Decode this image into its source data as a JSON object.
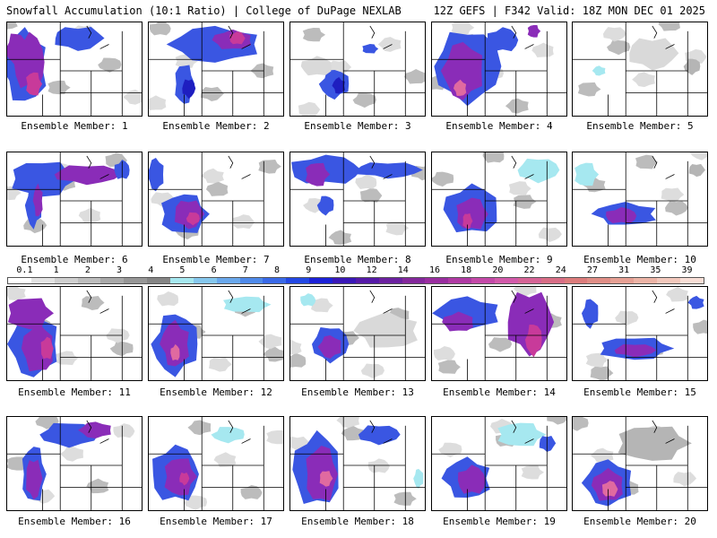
{
  "header": {
    "left_title": "Snowfall Accumulation (10:1 Ratio) | College of DuPage NEXLAB",
    "right_title": "12Z GEFS | F342 Valid: 18Z MON DEC 01 2025"
  },
  "legend": {
    "labels": [
      "0.1",
      "1",
      "2",
      "3",
      "4",
      "5",
      "6",
      "7",
      "8",
      "9",
      "10",
      "12",
      "14",
      "16",
      "18",
      "20",
      "22",
      "24",
      "27",
      "31",
      "35",
      "39"
    ],
    "colors": [
      "#ffffff",
      "#e3e3e3",
      "#cfcfcf",
      "#bdbdbd",
      "#a9a9a9",
      "#979797",
      "#858585",
      "#a6e8f0",
      "#86c8ee",
      "#6aa8ec",
      "#4f8aea",
      "#3a6ae8",
      "#2348e4",
      "#1c22d8",
      "#3a18b8",
      "#561aa8",
      "#6c22a0",
      "#84289c",
      "#9a2ea0",
      "#b03aa4",
      "#c449a8",
      "#d25aaa",
      "#d66496",
      "#d86e86",
      "#dc7c7c",
      "#e08e86",
      "#e6a094",
      "#ecb4a6",
      "#f2c8bc",
      "#f8ded6"
    ]
  },
  "map_regions": {
    "lavender": "#c2a0e6",
    "purple": "#8a2cb8",
    "blue": "#3a56e2",
    "darkblue": "#1e1ec0",
    "cyan": "#a6e8f0",
    "lightgray": "#d9d9d9",
    "gray": "#b5b5b5",
    "darkgray": "#8e8e8e",
    "magenta": "#c83a9a",
    "pink": "#e06aa0"
  },
  "members": [
    {
      "caption": "Ensemble Member: 1"
    },
    {
      "caption": "Ensemble Member: 2"
    },
    {
      "caption": "Ensemble Member: 3"
    },
    {
      "caption": "Ensemble Member: 4"
    },
    {
      "caption": "Ensemble Member: 5"
    },
    {
      "caption": "Ensemble Member: 6"
    },
    {
      "caption": "Ensemble Member: 7"
    },
    {
      "caption": "Ensemble Member: 8"
    },
    {
      "caption": "Ensemble Member: 9"
    },
    {
      "caption": "Ensemble Member: 10"
    },
    {
      "caption": "Ensemble Member: 11"
    },
    {
      "caption": "Ensemble Member: 12"
    },
    {
      "caption": "Ensemble Member: 13"
    },
    {
      "caption": "Ensemble Member: 14"
    },
    {
      "caption": "Ensemble Member: 15"
    },
    {
      "caption": "Ensemble Member: 16"
    },
    {
      "caption": "Ensemble Member: 17"
    },
    {
      "caption": "Ensemble Member: 18"
    },
    {
      "caption": "Ensemble Member: 19"
    },
    {
      "caption": "Ensemble Member: 20"
    }
  ]
}
